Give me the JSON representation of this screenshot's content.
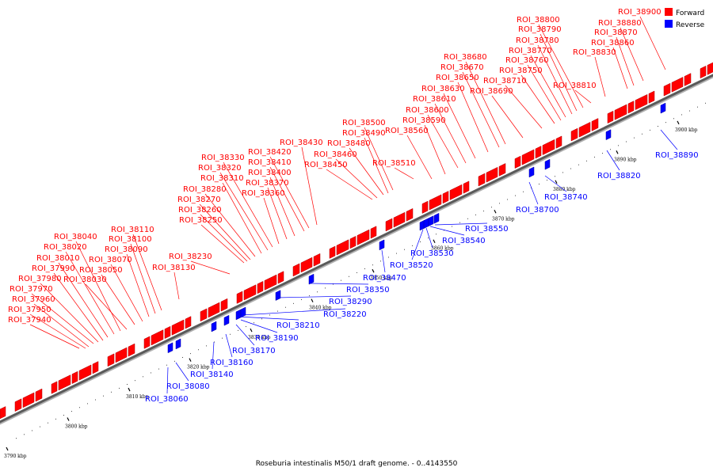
{
  "caption": "Roseburia intestinalis M50/1 draft genome. - 0..4143550",
  "legend": [
    {
      "label": "Forward",
      "color": "#ff0000"
    },
    {
      "label": "Reverse",
      "color": "#0000ff"
    }
  ],
  "colors": {
    "forward": "#ff0000",
    "reverse": "#0000ff",
    "track": "#8c8c8c"
  },
  "ticks": [
    "3790 kbp",
    "3800 kbp",
    "3810 kbp",
    "3820 kbp",
    "3830 kbp",
    "3840 kbp",
    "3850 kbp",
    "3860 kbp",
    "3870 kbp",
    "3880 kbp",
    "3890 kbp",
    "3900 kbp"
  ],
  "forward_labels": [
    "ROI_37940",
    "ROI_37950",
    "ROI_37960",
    "ROI_37970",
    "ROI_37980",
    "ROI_37990",
    "ROI_38010",
    "ROI_38020",
    "ROI_38040",
    "ROI_38030",
    "ROI_38050",
    "ROI_38070",
    "ROI_38090",
    "ROI_38100",
    "ROI_38110",
    "ROI_38130",
    "ROI_38230",
    "ROI_38250",
    "ROI_38260",
    "ROI_38270",
    "ROI_38280",
    "ROI_38310",
    "ROI_38320",
    "ROI_38330",
    "ROI_38360",
    "ROI_38370",
    "ROI_38400",
    "ROI_38410",
    "ROI_38420",
    "ROI_38430",
    "ROI_38450",
    "ROI_38460",
    "ROI_38480",
    "ROI_38490",
    "ROI_38500",
    "ROI_38510",
    "ROI_38560",
    "ROI_38590",
    "ROI_38600",
    "ROI_38610",
    "ROI_38630",
    "ROI_38650",
    "ROI_38670",
    "ROI_38680",
    "ROI_38690",
    "ROI_38710",
    "ROI_38750",
    "ROI_38760",
    "ROI_38770",
    "ROI_38780",
    "ROI_38790",
    "ROI_38800",
    "ROI_38810",
    "ROI_38830",
    "ROI_38860",
    "ROI_38870",
    "ROI_38880",
    "ROI_38900"
  ],
  "reverse_labels": [
    "ROI_38060",
    "ROI_38080",
    "ROI_38140",
    "ROI_38160",
    "ROI_38170",
    "ROI_38190",
    "ROI_38210",
    "ROI_38220",
    "ROI_38290",
    "ROI_38350",
    "ROI_38470",
    "ROI_38520",
    "ROI_38530",
    "ROI_38540",
    "ROI_38550",
    "ROI_38700",
    "ROI_38740",
    "ROI_38820",
    "ROI_38890"
  ]
}
